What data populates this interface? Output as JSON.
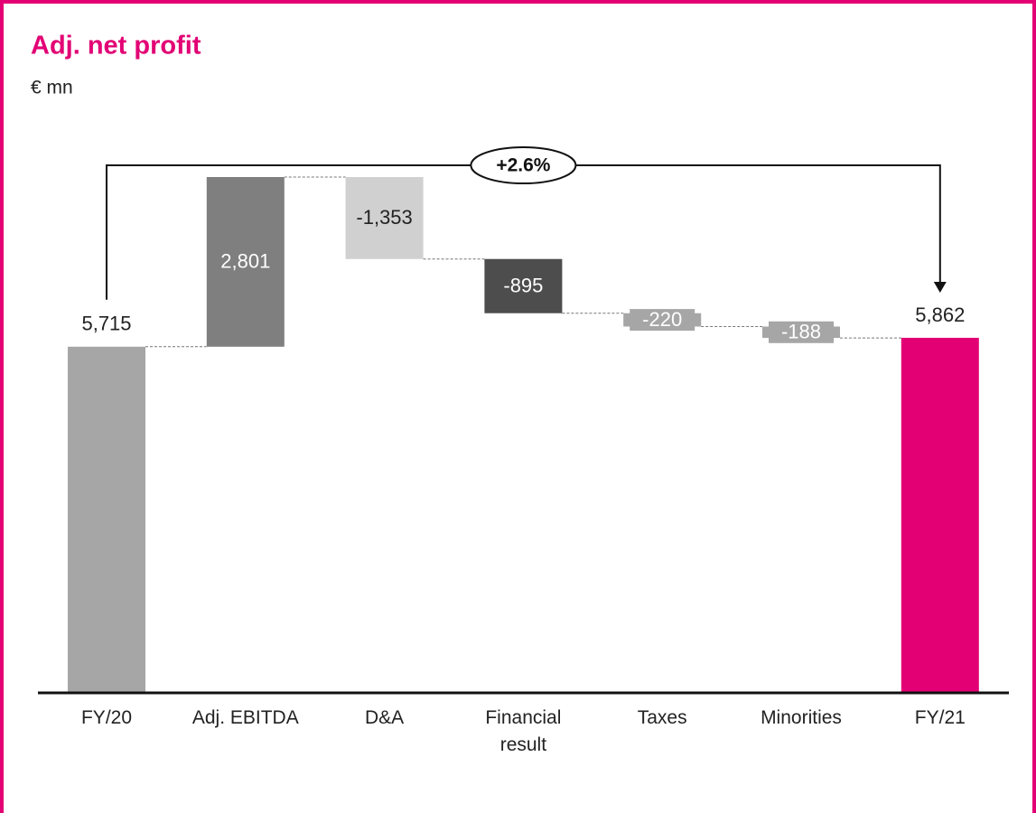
{
  "chart_data": {
    "type": "waterfall",
    "title": "Adj. net profit",
    "subtitle": "€ mn",
    "annotation": "+2.6%",
    "categories": [
      "FY/20",
      "Adj. EBITDA",
      "D&A",
      "Financial result",
      "Taxes",
      "Minorities",
      "FY/21"
    ],
    "values": [
      5715,
      2801,
      -1353,
      -895,
      -220,
      -188,
      5862
    ],
    "value_labels": [
      "5,715",
      "2,801",
      "-1,353",
      "-895",
      "-220",
      "-188",
      "5,862"
    ],
    "measure": [
      "total",
      "relative",
      "relative",
      "relative",
      "relative",
      "relative",
      "total"
    ],
    "colors": [
      "#a6a6a6",
      "#7f7f7f",
      "#d0d0d0",
      "#4d4d4d",
      "#a6a6a6",
      "#a6a6a6",
      "#e20074"
    ]
  }
}
